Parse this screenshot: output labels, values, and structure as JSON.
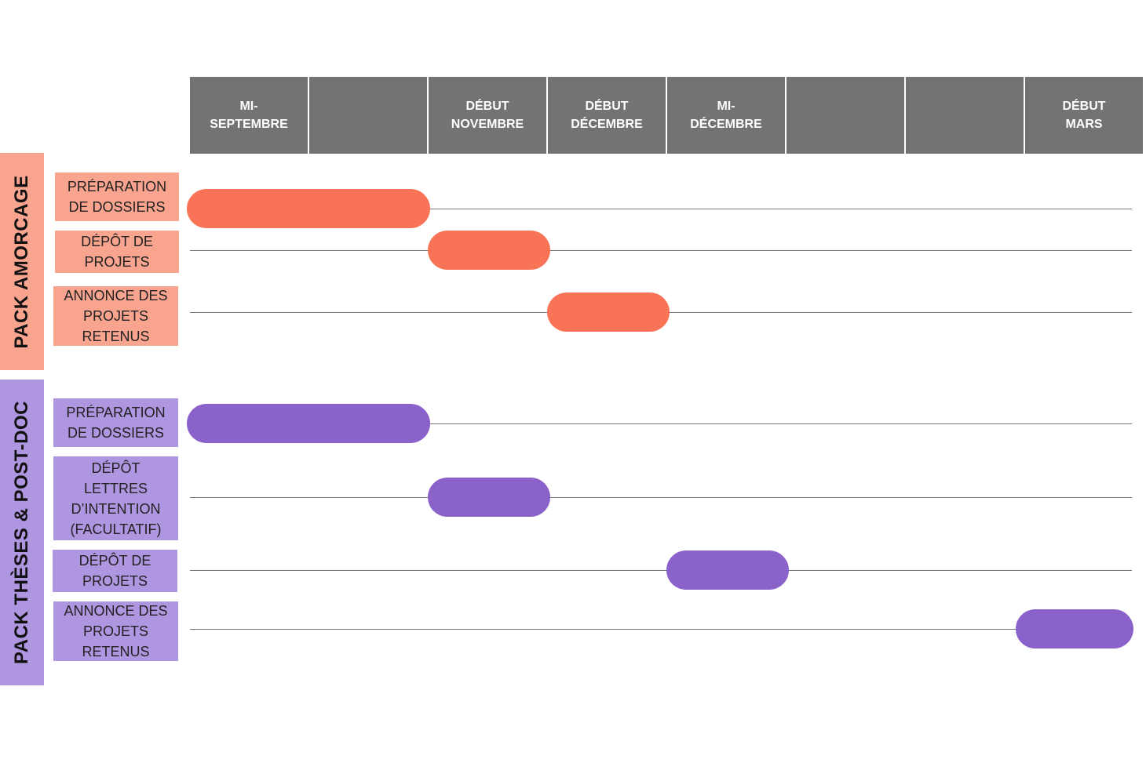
{
  "colors": {
    "header_cell": "#737373",
    "header_text": "#ffffff",
    "amorcage_band": "#f9a48f",
    "amorcage_bar": "#f97457",
    "theses_band": "#ae96e0",
    "theses_bar": "#8a62ca",
    "track_line": "#777777"
  },
  "periods": [
    {
      "label": "MI-\nSEPTEMBRE"
    },
    {
      "label": ""
    },
    {
      "label": "DÉBUT\nNOVEMBRE"
    },
    {
      "label": "DÉBUT\nDÉCEMBRE"
    },
    {
      "label": "MI-\nDÉCEMBRE"
    },
    {
      "label": ""
    },
    {
      "label": ""
    },
    {
      "label": "DÉBUT\nMARS"
    }
  ],
  "groups": [
    {
      "name": "PACK AMORCAGE",
      "tasks": [
        {
          "label_lines": [
            "PRÉPARATION",
            "DE DOSSIERS"
          ],
          "start_period": 0,
          "span": 2
        },
        {
          "label_lines": [
            "DÉPÔT DE",
            "PROJETS"
          ],
          "start_period": 2,
          "span": 1
        },
        {
          "label_lines": [
            "ANNONCE DES",
            "PROJETS",
            "RETENUS"
          ],
          "start_period": 3,
          "span": 1
        }
      ]
    },
    {
      "name": "PACK THÈSES & POST-DOC",
      "tasks": [
        {
          "label_lines": [
            "PRÉPARATION",
            "DE DOSSIERS"
          ],
          "start_period": 0,
          "span": 2
        },
        {
          "label_lines": [
            "DÉPÔT",
            "LETTRES",
            "D’INTENTION",
            "(FACULTATIF)"
          ],
          "start_period": 2,
          "span": 1
        },
        {
          "label_lines": [
            "DÉPÔT DE",
            "PROJETS"
          ],
          "start_period": 4,
          "span": 1
        },
        {
          "label_lines": [
            "ANNONCE DES",
            "PROJETS",
            "RETENUS"
          ],
          "start_period": 7,
          "span": 1
        }
      ]
    }
  ]
}
